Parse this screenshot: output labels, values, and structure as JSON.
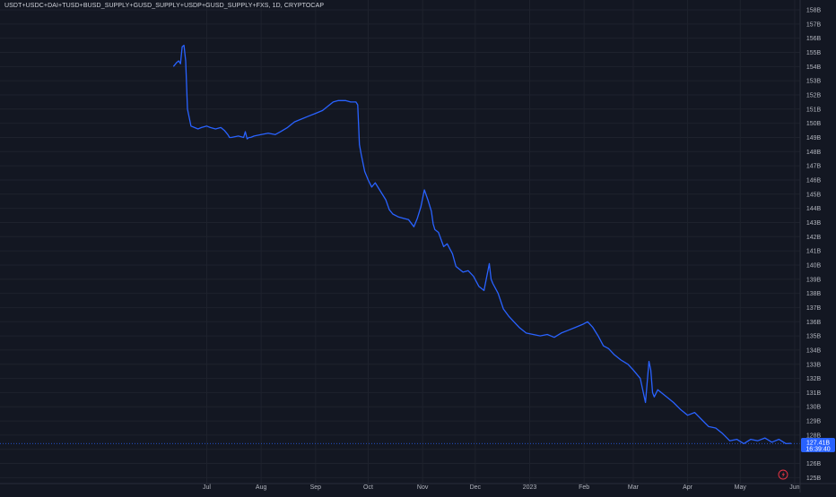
{
  "symbol_title": "USDT+USDC+DAI+TUSD+BUSD_SUPPLY+GUSD_SUPPLY+USDP+GUSD_SUPPLY+FXS, 1D, CRYPTOCAP",
  "price_tag": {
    "value": "127.41B",
    "countdown": "16:39:40"
  },
  "colors": {
    "background": "#131722",
    "grid": "#1e222d",
    "line": "#2962ff",
    "axis_text": "#b2b5be",
    "price_line": "#2962ff"
  },
  "icons": [
    "lightning-icon"
  ],
  "chart_data": {
    "type": "line",
    "title": "",
    "xlabel": "",
    "ylabel": "",
    "x_tick_labels": [
      "Jul",
      "Aug",
      "Sep",
      "Oct",
      "Nov",
      "Dec",
      "2023",
      "Feb",
      "Mar",
      "Apr",
      "May",
      "Jun"
    ],
    "x_tick_dates": [
      "2022-07-01",
      "2022-08-01",
      "2022-09-01",
      "2022-10-01",
      "2022-11-01",
      "2022-12-01",
      "2023-01-01",
      "2023-02-01",
      "2023-03-01",
      "2023-04-01",
      "2023-05-01",
      "2023-06-01"
    ],
    "y_tick_labels": [
      "158B",
      "157B",
      "156B",
      "155B",
      "154B",
      "153B",
      "152B",
      "151B",
      "150B",
      "149B",
      "148B",
      "147B",
      "146B",
      "145B",
      "144B",
      "143B",
      "142B",
      "141B",
      "140B",
      "139B",
      "138B",
      "137B",
      "136B",
      "135B",
      "134B",
      "133B",
      "132B",
      "131B",
      "130B",
      "129B",
      "128B",
      "127B",
      "126B",
      "125B"
    ],
    "y_ticks": [
      158,
      157,
      156,
      155,
      154,
      153,
      152,
      151,
      150,
      149,
      148,
      147,
      146,
      145,
      144,
      143,
      142,
      141,
      140,
      139,
      138,
      137,
      136,
      135,
      134,
      133,
      132,
      131,
      130,
      129,
      128,
      127,
      126,
      125
    ],
    "xlim": [
      "2022-06-09",
      "2023-06-05"
    ],
    "ylim": [
      124.8,
      158.3
    ],
    "y_unit": "B",
    "grid": true,
    "last_value": 127.41,
    "series": [
      {
        "x": [
          "2022-06-12",
          "2022-06-14",
          "2022-06-15",
          "2022-06-16",
          "2022-06-17",
          "2022-06-18",
          "2022-06-19",
          "2022-06-20",
          "2022-06-22",
          "2022-06-24",
          "2022-06-26",
          "2022-06-28",
          "2022-07-01",
          "2022-07-03",
          "2022-07-06",
          "2022-07-09",
          "2022-07-11",
          "2022-07-13",
          "2022-07-14",
          "2022-07-15",
          "2022-07-19",
          "2022-07-22",
          "2022-07-23",
          "2022-07-24",
          "2022-07-25",
          "2022-07-26",
          "2022-07-28",
          "2022-08-01",
          "2022-08-05",
          "2022-08-09",
          "2022-08-12",
          "2022-08-16",
          "2022-08-20",
          "2022-08-24",
          "2022-08-28",
          "2022-09-01",
          "2022-09-05",
          "2022-09-08",
          "2022-09-11",
          "2022-09-14",
          "2022-09-18",
          "2022-09-21",
          "2022-09-24",
          "2022-09-25",
          "2022-09-26",
          "2022-09-27",
          "2022-09-29",
          "2022-10-01",
          "2022-10-03",
          "2022-10-05",
          "2022-10-08",
          "2022-10-11",
          "2022-10-13",
          "2022-10-15",
          "2022-10-18",
          "2022-10-21",
          "2022-10-24",
          "2022-10-27",
          "2022-10-29",
          "2022-10-31",
          "2022-11-02",
          "2022-11-04",
          "2022-11-06",
          "2022-11-07",
          "2022-11-08",
          "2022-11-10",
          "2022-11-13",
          "2022-11-15",
          "2022-11-18",
          "2022-11-20",
          "2022-11-24",
          "2022-11-27",
          "2022-11-30",
          "2022-12-03",
          "2022-12-06",
          "2022-12-09",
          "2022-12-10",
          "2022-12-11",
          "2022-12-14",
          "2022-12-17",
          "2022-12-20",
          "2022-12-23",
          "2022-12-26",
          "2022-12-30",
          "2023-01-03",
          "2023-01-07",
          "2023-01-11",
          "2023-01-15",
          "2023-01-19",
          "2023-01-23",
          "2023-01-27",
          "2023-01-31",
          "2023-02-03",
          "2023-02-06",
          "2023-02-09",
          "2023-02-12",
          "2023-02-15",
          "2023-02-18",
          "2023-02-22",
          "2023-02-26",
          "2023-03-01",
          "2023-03-05",
          "2023-03-08",
          "2023-03-10",
          "2023-03-11",
          "2023-03-12",
          "2023-03-13",
          "2023-03-15",
          "2023-03-18",
          "2023-03-21",
          "2023-03-24",
          "2023-03-28",
          "2023-04-01",
          "2023-04-05",
          "2023-04-09",
          "2023-04-13",
          "2023-04-17",
          "2023-04-21",
          "2023-04-25",
          "2023-04-29",
          "2023-05-03",
          "2023-05-07",
          "2023-05-11",
          "2023-05-15",
          "2023-05-19",
          "2023-05-23",
          "2023-05-27",
          "2023-05-30"
        ],
        "values": [
          154.0,
          154.3,
          154.4,
          154.2,
          155.4,
          155.5,
          154.4,
          151.0,
          149.8,
          149.7,
          149.6,
          149.7,
          149.8,
          149.7,
          149.6,
          149.7,
          149.5,
          149.2,
          149.0,
          149.0,
          149.1,
          149.0,
          149.4,
          148.9,
          149.0,
          149.0,
          149.1,
          149.2,
          149.3,
          149.2,
          149.4,
          149.7,
          150.1,
          150.3,
          150.5,
          150.7,
          150.9,
          151.2,
          151.5,
          151.6,
          151.6,
          151.5,
          151.5,
          151.3,
          148.5,
          147.8,
          146.6,
          146.0,
          145.5,
          145.8,
          145.2,
          144.6,
          143.9,
          143.6,
          143.4,
          143.3,
          143.2,
          142.7,
          143.3,
          144.1,
          145.3,
          144.6,
          143.8,
          142.9,
          142.5,
          142.3,
          141.3,
          141.5,
          140.8,
          139.9,
          139.5,
          139.6,
          139.2,
          138.5,
          138.2,
          140.1,
          139.0,
          138.7,
          138.0,
          136.9,
          136.4,
          136.0,
          135.6,
          135.2,
          135.1,
          135.0,
          135.1,
          134.9,
          135.2,
          135.4,
          135.6,
          135.8,
          136.0,
          135.6,
          135.0,
          134.3,
          134.1,
          133.7,
          133.3,
          133.0,
          132.6,
          132.0,
          130.3,
          133.2,
          132.6,
          131.0,
          130.7,
          131.2,
          130.9,
          130.6,
          130.3,
          129.8,
          129.4,
          129.6,
          129.1,
          128.6,
          128.5,
          128.1,
          127.6,
          127.7,
          127.4,
          127.7,
          127.6,
          127.8,
          127.5,
          127.7,
          127.4,
          127.42
        ]
      }
    ]
  }
}
